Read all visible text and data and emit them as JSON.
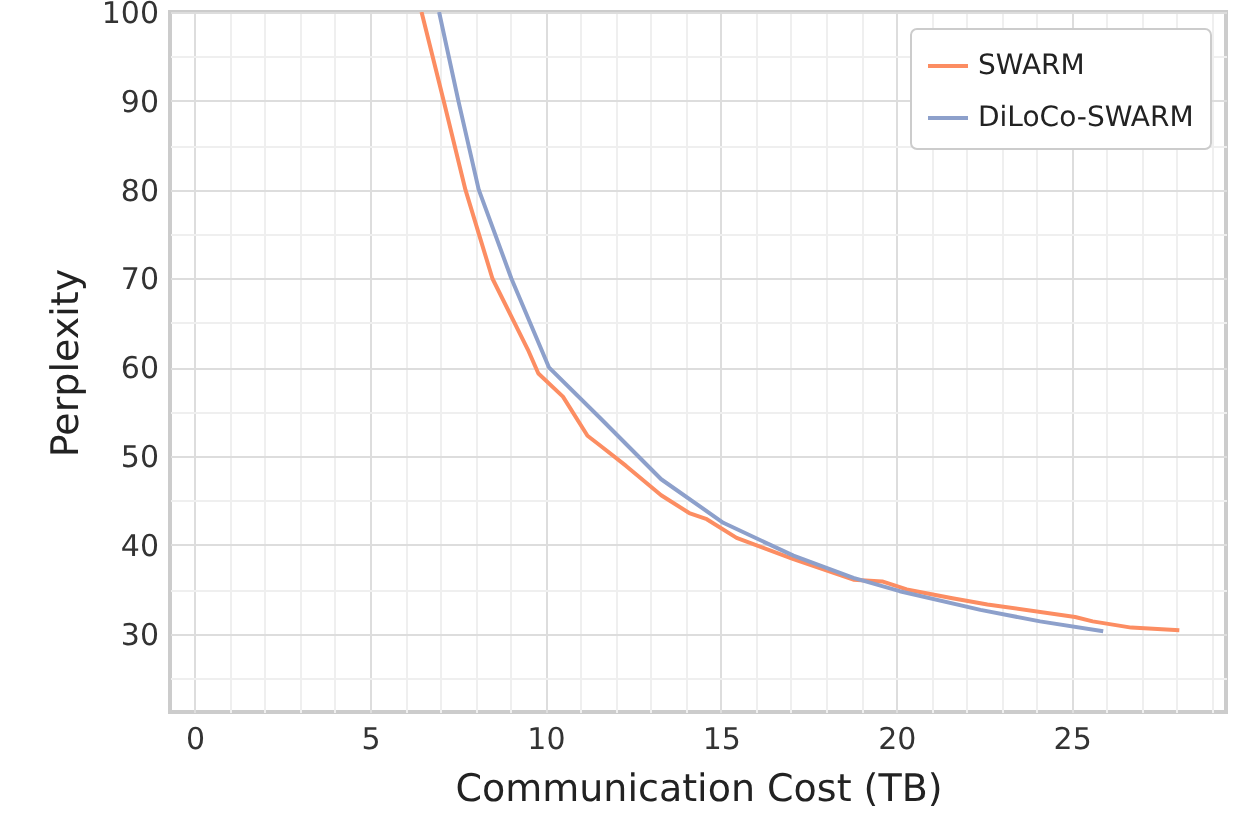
{
  "chart_data": {
    "type": "line",
    "xlabel": "Communication Cost (TB)",
    "ylabel": "Perplexity",
    "xlim": [
      -0.7,
      29.4
    ],
    "ylim": [
      21.2,
      100
    ],
    "xticks": [
      0,
      {
        "value": 1,
        "label": null
      },
      {
        "value": 2,
        "label": null
      },
      {
        "value": 3,
        "label": null
      },
      {
        "value": 4,
        "label": null
      },
      5,
      {
        "value": 6,
        "label": null
      },
      {
        "value": 7,
        "label": null
      },
      {
        "value": 8,
        "label": null
      },
      {
        "value": 9,
        "label": null
      },
      10,
      {
        "value": 11,
        "label": null
      },
      {
        "value": 12,
        "label": null
      },
      {
        "value": 13,
        "label": null
      },
      {
        "value": 14,
        "label": null
      },
      15,
      {
        "value": 16,
        "label": null
      },
      {
        "value": 17,
        "label": null
      },
      {
        "value": 18,
        "label": null
      },
      {
        "value": 19,
        "label": null
      },
      20,
      {
        "value": 21,
        "label": null
      },
      {
        "value": 22,
        "label": null
      },
      {
        "value": 23,
        "label": null
      },
      {
        "value": 24,
        "label": null
      },
      25,
      {
        "value": 26,
        "label": null
      },
      {
        "value": 27,
        "label": null
      },
      {
        "value": 28,
        "label": null
      },
      {
        "value": 29,
        "label": null
      }
    ],
    "yticks": [
      {
        "value": 25,
        "label": null
      },
      30,
      {
        "value": 35,
        "label": null
      },
      40,
      {
        "value": 45,
        "label": null
      },
      50,
      {
        "value": 55,
        "label": null
      },
      60,
      {
        "value": 65,
        "label": null
      },
      70,
      {
        "value": 75,
        "label": null
      },
      80,
      {
        "value": 85,
        "label": null
      },
      90,
      {
        "value": 95,
        "label": null
      },
      100
    ],
    "grid": true,
    "legend": "top right",
    "line_style": "solid",
    "series": [
      {
        "name": "SWARM",
        "color": "#fc8d62",
        "x": [
          6.47,
          7.1,
          7.72,
          8.49,
          9.5,
          9.8,
          10.5,
          11.2,
          11.56,
          12.3,
          13.3,
          14.1,
          14.6,
          15.45,
          17.07,
          18.78,
          19.6,
          20.3,
          21.6,
          22.6,
          25.1,
          25.6,
          26.7,
          28.07
        ],
        "values": [
          100,
          90,
          80,
          70,
          62,
          59.3,
          56.7,
          52.3,
          51.2,
          48.9,
          45.6,
          43.6,
          42.9,
          40.8,
          38.4,
          36.1,
          35.9,
          35.0,
          34.0,
          33.3,
          31.9,
          31.4,
          30.7,
          30.4
        ]
      },
      {
        "name": "DiLoCo-SWARM",
        "color": "#8da0cb",
        "x": [
          6.97,
          7.52,
          8.1,
          9.03,
          10.1,
          11.56,
          13.3,
          15.07,
          17.07,
          18.78,
          20.1,
          22.4,
          24.1,
          25.9
        ],
        "values": [
          100,
          90,
          80,
          70,
          60,
          54.3,
          47.4,
          42.5,
          38.8,
          36.3,
          34.8,
          32.7,
          31.4,
          30.3
        ]
      }
    ]
  }
}
